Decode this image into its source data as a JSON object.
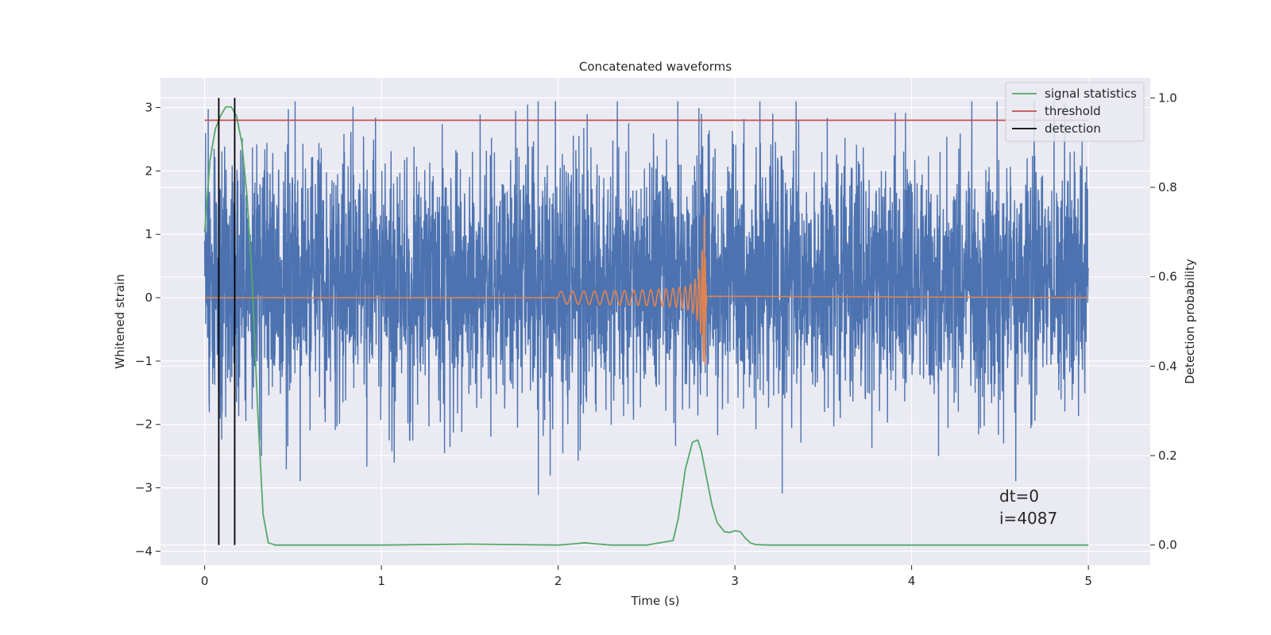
{
  "chart_data": {
    "type": "line",
    "title": "Concatenated waveforms",
    "xlabel": "Time (s)",
    "ylabel": "Whitened strain",
    "y2label": "Detection probability",
    "xlim": [
      -0.25,
      5.35
    ],
    "ylim": [
      -4.22,
      3.47
    ],
    "y2lim": [
      -0.045,
      1.045
    ],
    "x_ticks": [
      0,
      1,
      2,
      3,
      4,
      5
    ],
    "x_tick_labels": [
      "0",
      "1",
      "2",
      "3",
      "4",
      "5"
    ],
    "y_ticks": [
      3,
      2,
      1,
      0,
      -1,
      -2,
      -3,
      -4
    ],
    "y_tick_labels": [
      "3",
      "2",
      "1",
      "0",
      "−1",
      "−2",
      "−3",
      "−4"
    ],
    "y2_ticks": [
      1.0,
      0.8,
      0.6,
      0.4,
      0.2,
      0.0
    ],
    "y2_tick_labels": [
      "1.0",
      "0.8",
      "0.6",
      "0.4",
      "0.2",
      "0.0"
    ],
    "grid": true,
    "legend_position": "top-right",
    "legend": [
      {
        "label": "signal statistics",
        "color": "#55a868"
      },
      {
        "label": "threshold",
        "color": "#c44e52"
      },
      {
        "label": "detection",
        "color": "#000000"
      }
    ],
    "annotation_lines": [
      "dt=0",
      "i=4087"
    ],
    "series": [
      {
        "role": "noise",
        "axis": "left",
        "color": "#4c72b0",
        "x_range": [
          0,
          5
        ],
        "y_range": [
          -3.8,
          3.1
        ],
        "typical_band": [
          -1.6,
          2.4
        ]
      },
      {
        "role": "chirp",
        "axis": "left",
        "color": "#dd8452",
        "x_range": [
          2.0,
          2.84
        ],
        "peak_amplitude": 1.3,
        "t_merger": 2.83
      },
      {
        "name": "signal statistics",
        "axis": "right",
        "color": "#55a868",
        "x": [
          0,
          0.03,
          0.06,
          0.09,
          0.12,
          0.15,
          0.18,
          0.21,
          0.24,
          0.27,
          0.3,
          0.33,
          0.36,
          0.4,
          0.6,
          1.0,
          1.5,
          2.0,
          2.1,
          2.15,
          2.2,
          2.3,
          2.5,
          2.65,
          2.68,
          2.72,
          2.76,
          2.79,
          2.81,
          2.84,
          2.87,
          2.9,
          2.94,
          2.97,
          3.0,
          3.03,
          3.06,
          3.09,
          3.12,
          3.2,
          4.0,
          5.0
        ],
        "y": [
          0.7,
          0.86,
          0.93,
          0.96,
          0.98,
          0.98,
          0.96,
          0.9,
          0.78,
          0.58,
          0.3,
          0.07,
          0.005,
          0.0,
          0.0,
          0.0,
          0.002,
          0.0,
          0.003,
          0.005,
          0.003,
          0.0,
          0.0,
          0.01,
          0.06,
          0.17,
          0.23,
          0.235,
          0.21,
          0.15,
          0.09,
          0.05,
          0.03,
          0.028,
          0.032,
          0.03,
          0.015,
          0.004,
          0.001,
          0.0,
          0.0,
          0.0
        ]
      },
      {
        "name": "threshold",
        "axis": "right",
        "color": "#c44e52",
        "x": [
          0,
          5
        ],
        "y": [
          0.95,
          0.95
        ]
      }
    ],
    "detections": [
      0.08,
      0.17
    ],
    "detection_range": [
      0.0,
      1.0
    ]
  }
}
